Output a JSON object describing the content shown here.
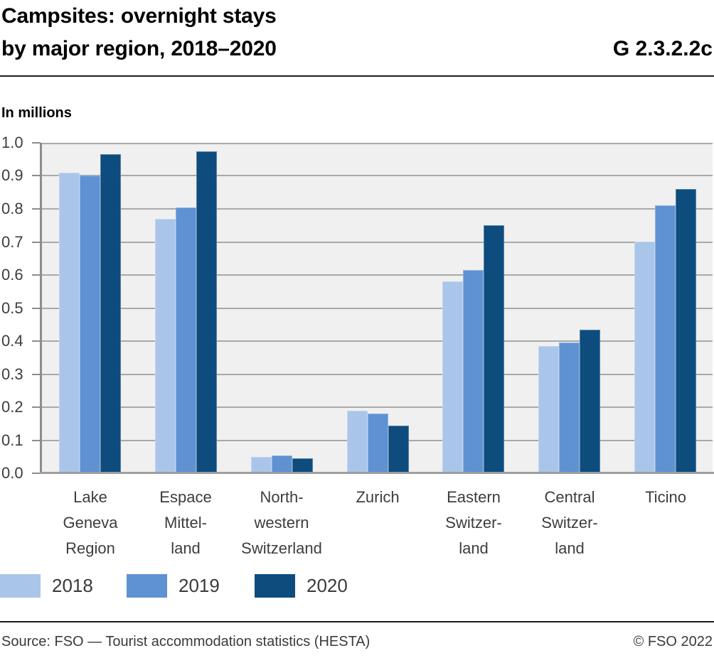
{
  "header": {
    "title_line1": "Campsites: overnight stays",
    "title_line2": "by major region, 2018–2020",
    "figure_code": "G 2.3.2.2c"
  },
  "chart_data": {
    "type": "bar",
    "title": "Campsites: overnight stays by major region, 2018–2020",
    "unit_label": "In millions",
    "xlabel": "",
    "ylabel": "In millions",
    "ylim": [
      0,
      1.0
    ],
    "y_tick_step": 0.1,
    "y_ticks": [
      "1.0",
      "0.9",
      "0.8",
      "0.7",
      "0.6",
      "0.5",
      "0.4",
      "0.3",
      "0.2",
      "0.1",
      "0.0"
    ],
    "grid": true,
    "legend_position": "bottom",
    "categories": [
      "Lake Geneva Region",
      "Espace Mittelland",
      "North-western Switzerland",
      "Zurich",
      "Eastern Switzerland",
      "Central Switzerland",
      "Ticino"
    ],
    "category_tick_labels": [
      "Lake\nGeneva\nRegion",
      "Espace\nMittel-\nland",
      "North-\nwestern\nSwitzerland",
      "Zurich",
      "Eastern\nSwitzer-\nland",
      "Central\nSwitzer-\nland",
      "Ticino"
    ],
    "series": [
      {
        "name": "2018",
        "color": "#a9c5e9",
        "values": [
          0.91,
          0.77,
          0.05,
          0.19,
          0.58,
          0.385,
          0.7
        ]
      },
      {
        "name": "2019",
        "color": "#5e92d2",
        "values": [
          0.9,
          0.805,
          0.053,
          0.18,
          0.615,
          0.395,
          0.81
        ]
      },
      {
        "name": "2020",
        "color": "#0d4c7d",
        "values": [
          0.965,
          0.975,
          0.046,
          0.145,
          0.75,
          0.435,
          0.86
        ]
      }
    ]
  },
  "footer": {
    "source": "Source: FSO — Tourist accommodation statistics (HESTA)",
    "copyright": "© FSO 2022"
  }
}
